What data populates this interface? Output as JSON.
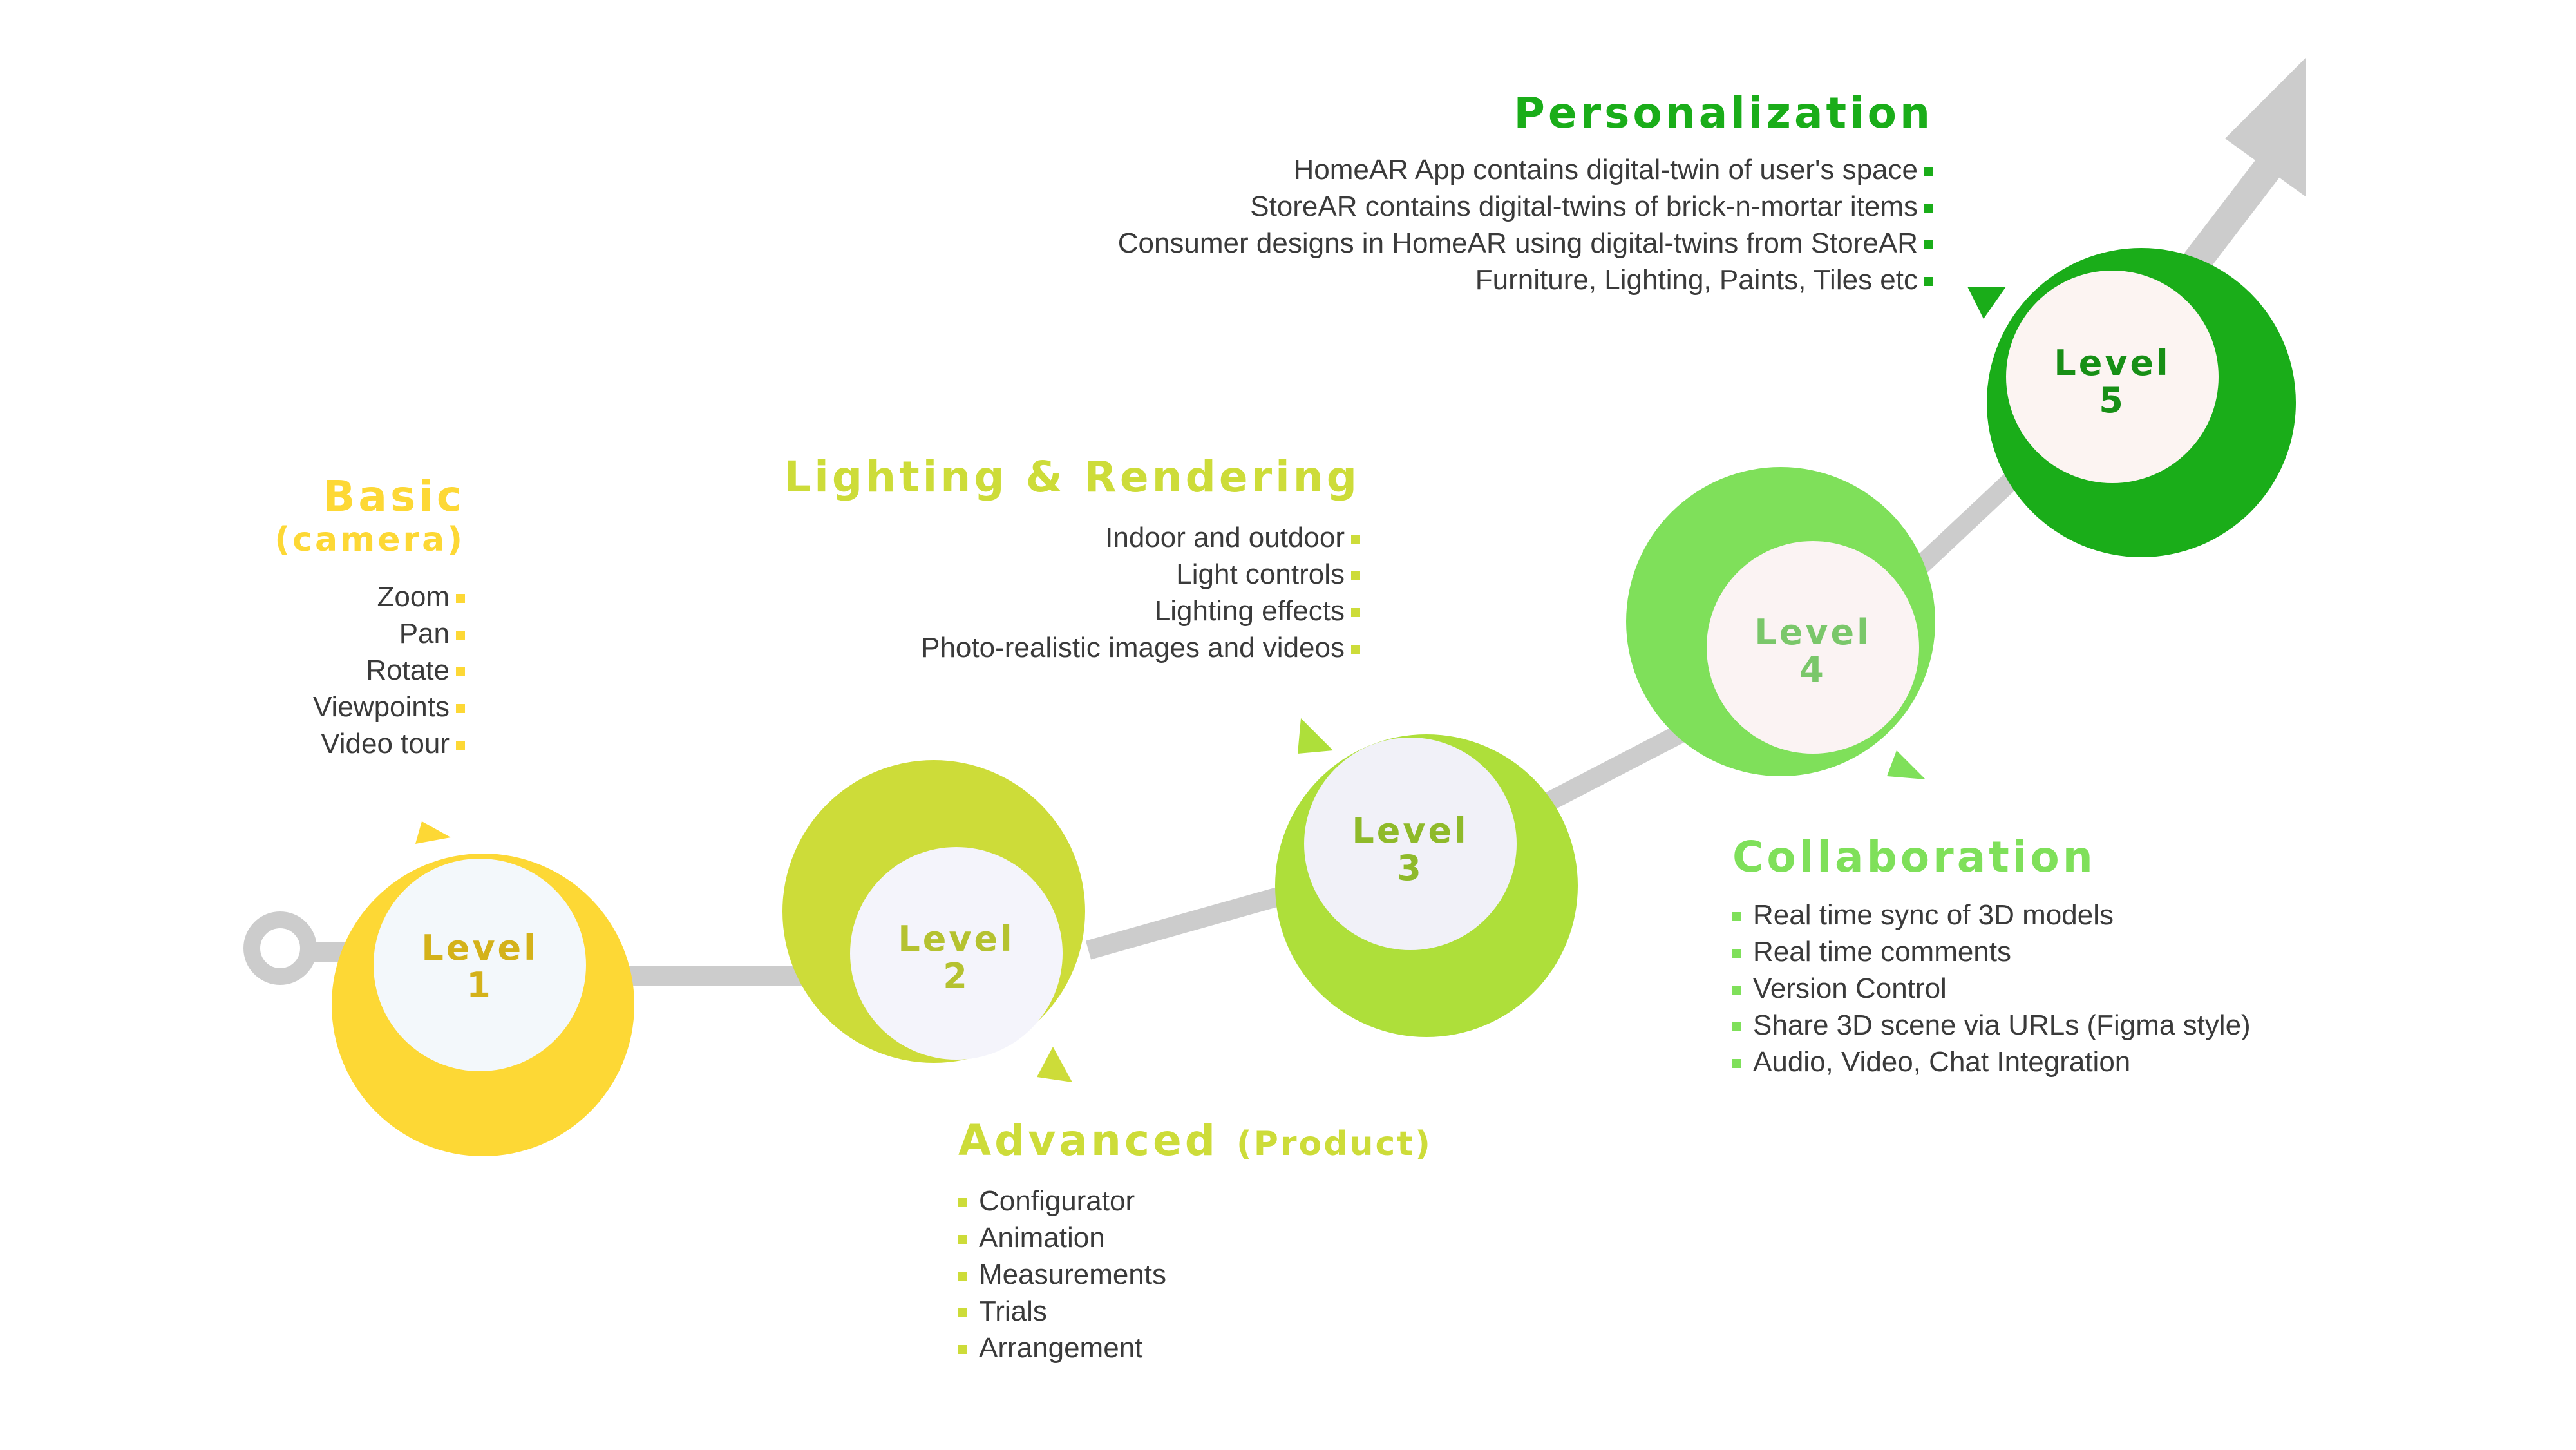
{
  "colors": {
    "level1": "#fdd835",
    "level2": "#cddc39",
    "level3": "#aedf3a",
    "level4": "#7fe05a",
    "level5": "#1aad19",
    "connector": "#cccccc",
    "inner": "#f7f7fb",
    "text": "#3a3a3a"
  },
  "levels": [
    {
      "word": "Level",
      "number": "1"
    },
    {
      "word": "Level",
      "number": "2"
    },
    {
      "word": "Level",
      "number": "3"
    },
    {
      "word": "Level",
      "number": "4"
    },
    {
      "word": "Level",
      "number": "5"
    }
  ],
  "basic": {
    "title": "Basic",
    "subtitle": "(camera)",
    "items": [
      "Zoom",
      "Pan",
      "Rotate",
      "Viewpoints",
      "Video tour"
    ]
  },
  "advanced": {
    "title": "Advanced",
    "subtitle": "(Product)",
    "items": [
      "Configurator",
      "Animation",
      "Measurements",
      "Trials",
      "Arrangement"
    ]
  },
  "lighting": {
    "title": "Lighting & Rendering",
    "items": [
      "Indoor and outdoor",
      "Light controls",
      "Lighting effects",
      "Photo-realistic images and videos"
    ]
  },
  "collaboration": {
    "title": "Collaboration",
    "items": [
      "Real time sync of 3D models",
      "Real time comments",
      "Version Control",
      "Share 3D scene via URLs (Figma style)",
      "Audio, Video, Chat Integration"
    ]
  },
  "personalization": {
    "title": "Personalization",
    "items": [
      "HomeAR App contains digital-twin of user's space",
      "StoreAR contains digital-twins of brick-n-mortar items",
      "Consumer designs in HomeAR using digital-twins from StoreAR",
      "Furniture, Lighting, Paints, Tiles etc"
    ]
  }
}
